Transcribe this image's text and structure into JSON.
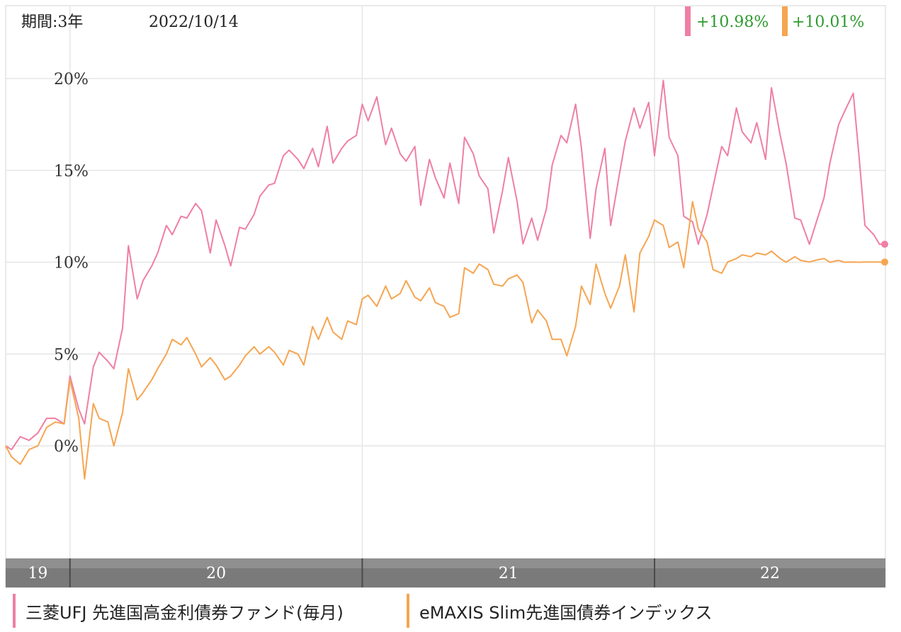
{
  "header": {
    "period_label": "期間:3年",
    "date_label": "2022/10/14",
    "badges": [
      {
        "value": "+10.98%",
        "series_color": "#ef7fa3"
      },
      {
        "value": "+10.01%",
        "series_color": "#f6a551"
      }
    ],
    "badge_text_color": "#2e9a2e"
  },
  "chart_data": {
    "type": "line",
    "ylim": [
      -6,
      23
    ],
    "y_ticks": [
      {
        "value": 20,
        "label": "20%"
      },
      {
        "value": 15,
        "label": "15%"
      },
      {
        "value": 10,
        "label": "10%"
      },
      {
        "value": 5,
        "label": "5%"
      },
      {
        "value": 0,
        "label": "0%"
      }
    ],
    "x_range": [
      2019.78,
      2022.79
    ],
    "year_bands": [
      {
        "label": "19",
        "start": 2019.78,
        "end": 2020.0
      },
      {
        "label": "20",
        "start": 2020.0,
        "end": 2021.0
      },
      {
        "label": "21",
        "start": 2021.0,
        "end": 2022.0
      },
      {
        "label": "22",
        "start": 2022.0,
        "end": 2022.79
      }
    ],
    "grid": true,
    "series": [
      {
        "name": "三菱UFJ 先進国高金利債券ファンド(毎月)",
        "color": "#ef7fa3",
        "end_value": 10.98,
        "x": [
          2019.78,
          2019.8,
          2019.83,
          2019.86,
          2019.89,
          2019.92,
          2019.95,
          2019.98,
          2020.0,
          2020.03,
          2020.05,
          2020.08,
          2020.1,
          2020.13,
          2020.15,
          2020.18,
          2020.2,
          2020.23,
          2020.25,
          2020.28,
          2020.3,
          2020.33,
          2020.35,
          2020.38,
          2020.4,
          2020.43,
          2020.45,
          2020.48,
          2020.5,
          2020.53,
          2020.55,
          2020.58,
          2020.6,
          2020.63,
          2020.65,
          2020.68,
          2020.7,
          2020.73,
          2020.75,
          2020.78,
          2020.8,
          2020.83,
          2020.85,
          2020.88,
          2020.9,
          2020.93,
          2020.95,
          2020.98,
          2021.0,
          2021.02,
          2021.05,
          2021.08,
          2021.1,
          2021.13,
          2021.15,
          2021.18,
          2021.2,
          2021.23,
          2021.25,
          2021.28,
          2021.3,
          2021.33,
          2021.35,
          2021.38,
          2021.4,
          2021.43,
          2021.45,
          2021.48,
          2021.5,
          2021.53,
          2021.55,
          2021.58,
          2021.6,
          2021.63,
          2021.65,
          2021.68,
          2021.7,
          2021.73,
          2021.75,
          2021.78,
          2021.8,
          2021.83,
          2021.85,
          2021.88,
          2021.9,
          2021.93,
          2021.95,
          2021.98,
          2022.0,
          2022.03,
          2022.05,
          2022.08,
          2022.1,
          2022.13,
          2022.15,
          2022.18,
          2022.2,
          2022.23,
          2022.25,
          2022.28,
          2022.3,
          2022.33,
          2022.35,
          2022.38,
          2022.4,
          2022.43,
          2022.45,
          2022.48,
          2022.5,
          2022.53,
          2022.55,
          2022.58,
          2022.6,
          2022.63,
          2022.65,
          2022.68,
          2022.7,
          2022.72,
          2022.75,
          2022.77,
          2022.79
        ],
        "values": [
          0.0,
          -0.2,
          0.5,
          0.3,
          0.7,
          1.5,
          1.5,
          1.2,
          3.8,
          2.0,
          1.2,
          4.3,
          5.1,
          4.6,
          4.2,
          6.4,
          10.9,
          8.0,
          9.0,
          9.8,
          10.5,
          12.0,
          11.5,
          12.5,
          12.4,
          13.2,
          12.8,
          10.5,
          12.3,
          10.9,
          9.8,
          11.9,
          11.8,
          12.6,
          13.6,
          14.2,
          14.3,
          15.8,
          16.1,
          15.6,
          15.1,
          16.2,
          15.2,
          17.4,
          15.4,
          16.2,
          16.6,
          16.9,
          18.6,
          17.7,
          19.0,
          16.4,
          17.3,
          15.9,
          15.5,
          16.3,
          13.1,
          15.6,
          14.6,
          13.5,
          15.4,
          13.2,
          16.8,
          15.9,
          14.7,
          14.0,
          11.6,
          13.9,
          15.7,
          13.3,
          11.0,
          12.4,
          11.2,
          12.9,
          15.3,
          16.9,
          16.5,
          18.6,
          16.2,
          11.3,
          14.0,
          16.2,
          12.0,
          14.8,
          16.6,
          18.4,
          17.3,
          18.7,
          15.8,
          19.9,
          16.8,
          15.8,
          12.5,
          12.2,
          10.98,
          12.6,
          14.1,
          16.3,
          15.8,
          18.4,
          17.1,
          16.5,
          17.6,
          15.6,
          19.5,
          16.9,
          15.4,
          12.4,
          12.3,
          10.98,
          12.0,
          13.5,
          15.4,
          17.5,
          18.2,
          19.2,
          15.7,
          12.0,
          11.5,
          10.98,
          10.98
        ]
      },
      {
        "name": "eMAXIS Slim先進国債券インデックス",
        "color": "#f6a551",
        "end_value": 10.01,
        "x": [
          2019.78,
          2019.8,
          2019.83,
          2019.86,
          2019.89,
          2019.92,
          2019.95,
          2019.98,
          2020.0,
          2020.03,
          2020.05,
          2020.08,
          2020.1,
          2020.13,
          2020.15,
          2020.18,
          2020.2,
          2020.23,
          2020.25,
          2020.28,
          2020.3,
          2020.33,
          2020.35,
          2020.38,
          2020.4,
          2020.43,
          2020.45,
          2020.48,
          2020.5,
          2020.53,
          2020.55,
          2020.58,
          2020.6,
          2020.63,
          2020.65,
          2020.68,
          2020.7,
          2020.73,
          2020.75,
          2020.78,
          2020.8,
          2020.83,
          2020.85,
          2020.88,
          2020.9,
          2020.93,
          2020.95,
          2020.98,
          2021.0,
          2021.02,
          2021.05,
          2021.08,
          2021.1,
          2021.13,
          2021.15,
          2021.18,
          2021.2,
          2021.23,
          2021.25,
          2021.28,
          2021.3,
          2021.33,
          2021.35,
          2021.38,
          2021.4,
          2021.43,
          2021.45,
          2021.48,
          2021.5,
          2021.53,
          2021.55,
          2021.58,
          2021.6,
          2021.63,
          2021.65,
          2021.68,
          2021.7,
          2021.73,
          2021.75,
          2021.78,
          2021.8,
          2021.83,
          2021.85,
          2021.88,
          2021.9,
          2021.93,
          2021.95,
          2021.98,
          2022.0,
          2022.03,
          2022.05,
          2022.08,
          2022.1,
          2022.13,
          2022.15,
          2022.18,
          2022.2,
          2022.23,
          2022.25,
          2022.28,
          2022.3,
          2022.33,
          2022.35,
          2022.38,
          2022.4,
          2022.43,
          2022.45,
          2022.48,
          2022.5,
          2022.53,
          2022.55,
          2022.58,
          2022.6,
          2022.63,
          2022.65,
          2022.68,
          2022.7,
          2022.72,
          2022.75,
          2022.77,
          2022.79
        ],
        "values": [
          0.0,
          -0.6,
          -1.0,
          -0.2,
          0.0,
          1.0,
          1.3,
          1.2,
          3.6,
          1.5,
          -1.8,
          2.3,
          1.5,
          1.3,
          0.0,
          1.8,
          4.2,
          2.5,
          2.9,
          3.6,
          4.2,
          5.0,
          5.8,
          5.5,
          5.9,
          5.0,
          4.3,
          4.8,
          4.4,
          3.6,
          3.8,
          4.4,
          4.9,
          5.4,
          5.0,
          5.4,
          5.1,
          4.4,
          5.2,
          5.0,
          4.4,
          6.5,
          5.8,
          7.0,
          6.2,
          5.8,
          6.8,
          6.6,
          8.0,
          8.2,
          7.6,
          8.7,
          8.0,
          8.3,
          9.0,
          8.1,
          7.9,
          8.6,
          7.8,
          7.6,
          7.0,
          7.2,
          9.7,
          9.4,
          9.9,
          9.6,
          8.8,
          8.7,
          9.1,
          9.3,
          8.9,
          6.7,
          7.4,
          6.8,
          5.8,
          5.8,
          4.9,
          6.5,
          8.7,
          7.7,
          9.9,
          8.3,
          7.5,
          8.7,
          10.4,
          7.3,
          10.5,
          11.4,
          12.3,
          12.0,
          10.8,
          11.1,
          9.7,
          13.3,
          11.8,
          11.1,
          9.6,
          9.4,
          10.01,
          10.2,
          10.4,
          10.3,
          10.5,
          10.4,
          10.6,
          10.2,
          10.0,
          10.3,
          10.1,
          10.01,
          10.1,
          10.2,
          10.0,
          10.1,
          10.0,
          10.01,
          10.0,
          10.01,
          10.01,
          10.01,
          10.01
        ]
      }
    ]
  },
  "legend": {
    "items": [
      {
        "label": "三菱UFJ 先進国高金利債券ファンド(毎月)",
        "color": "#ef7fa3"
      },
      {
        "label": "eMAXIS Slim先進国債券インデックス",
        "color": "#f6a551"
      }
    ]
  }
}
